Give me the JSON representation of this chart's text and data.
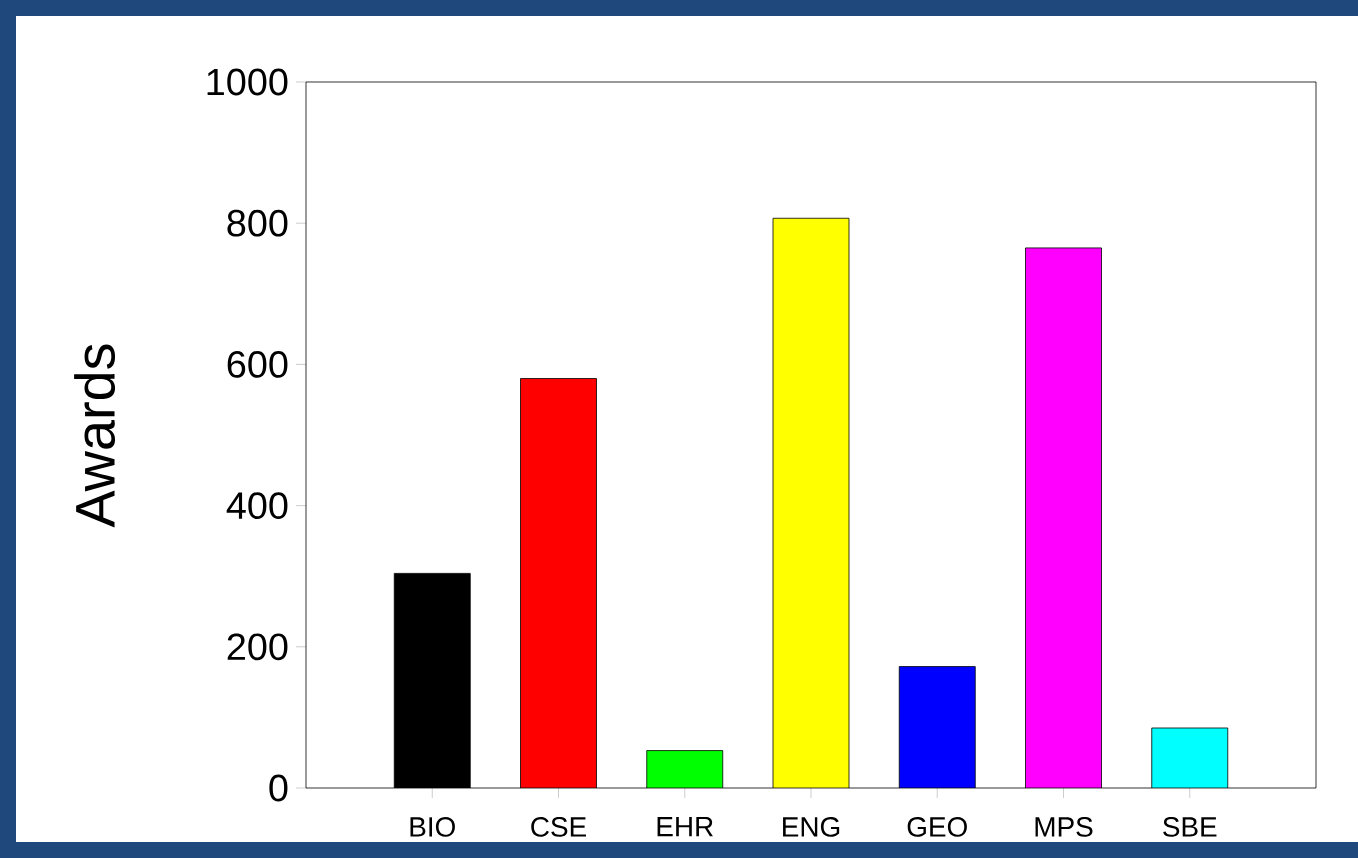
{
  "chart_data": {
    "type": "bar",
    "ylabel": "Awards",
    "categories": [
      "BIO",
      "CSE",
      "EHR",
      "ENG",
      "GEO",
      "MPS",
      "SBE"
    ],
    "values": [
      304,
      580,
      53,
      807,
      172,
      765,
      85
    ],
    "colors": [
      "#000000",
      "#ff0000",
      "#00ff00",
      "#ffff00",
      "#0000ff",
      "#ff00ff",
      "#00ffff"
    ],
    "ylim": [
      0,
      1000
    ],
    "yticks": [
      0,
      200,
      400,
      600,
      800,
      1000
    ],
    "grid": false
  }
}
